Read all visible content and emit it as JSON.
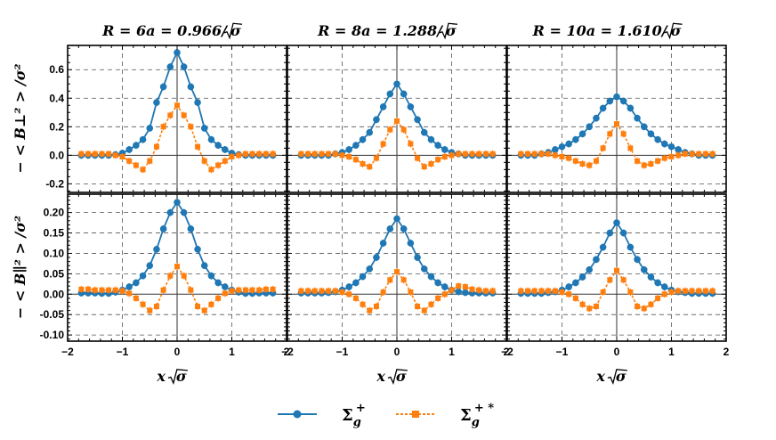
{
  "chart_data": {
    "type": "line",
    "columns": [
      {
        "title_lhs": "R = 6a = 0.966/",
        "title_rad": "σ"
      },
      {
        "title_lhs": "R = 8a = 1.288/",
        "title_rad": "σ"
      },
      {
        "title_lhs": "R = 10a = 1.610/",
        "title_rad": "σ"
      }
    ],
    "rows": [
      {
        "ylabel": "− < B⊥² > /σ²",
        "ylim": [
          -0.26,
          0.77
        ],
        "yticks": [
          -0.2,
          0.0,
          0.2,
          0.4,
          0.6
        ],
        "ytick_labels": [
          "-0.2",
          "0.0",
          "0.2",
          "0.4",
          "0.6"
        ]
      },
      {
        "ylabel": "− < B∥² > /σ²",
        "ylim": [
          -0.115,
          0.245
        ],
        "yticks": [
          -0.1,
          -0.05,
          0.0,
          0.05,
          0.1,
          0.15,
          0.2
        ],
        "ytick_labels": [
          "-0.10",
          "-0.05",
          "0.00",
          "0.05",
          "0.10",
          "0.15",
          "0.20"
        ]
      }
    ],
    "xlabel_lhs": "x",
    "xlabel_rad": "σ",
    "xlim": [
      -2,
      2
    ],
    "xticks": [
      -2,
      -1,
      0,
      1,
      2
    ],
    "xtick_labels": [
      "−2",
      "−1",
      "0",
      "1",
      "2"
    ],
    "x": [
      -1.75,
      -1.625,
      -1.5,
      -1.375,
      -1.25,
      -1.125,
      -1.0,
      -0.875,
      -0.75,
      -0.625,
      -0.5,
      -0.375,
      -0.25,
      -0.125,
      0.0,
      0.125,
      0.25,
      0.375,
      0.5,
      0.625,
      0.75,
      0.875,
      1.0,
      1.125,
      1.25,
      1.375,
      1.5,
      1.625,
      1.75
    ],
    "series_names": [
      "Σg+",
      "Σg+*"
    ],
    "series_colors": [
      "#1f77b4",
      "#ff7f0e"
    ],
    "panels": [
      {
        "row": 0,
        "col": 0,
        "series": [
          {
            "values": [
              0.0,
              0.0,
              0.0,
              0.0,
              0.0,
              0.005,
              0.015,
              0.04,
              0.07,
              0.11,
              0.19,
              0.37,
              0.48,
              0.62,
              0.72,
              0.62,
              0.48,
              0.37,
              0.19,
              0.11,
              0.07,
              0.04,
              0.015,
              0.005,
              0.0,
              0.0,
              0.0,
              0.0,
              0.0
            ]
          },
          {
            "values": [
              0.01,
              0.01,
              0.01,
              0.01,
              0.01,
              0.0,
              -0.01,
              -0.04,
              -0.07,
              -0.1,
              -0.04,
              0.06,
              0.2,
              0.28,
              0.35,
              0.28,
              0.2,
              0.06,
              -0.04,
              -0.1,
              -0.07,
              -0.04,
              -0.01,
              0.0,
              0.01,
              0.01,
              0.01,
              0.01,
              0.01
            ]
          }
        ]
      },
      {
        "row": 0,
        "col": 1,
        "series": [
          {
            "values": [
              0.0,
              0.0,
              0.0,
              0.0,
              0.0,
              0.01,
              0.02,
              0.04,
              0.07,
              0.11,
              0.16,
              0.25,
              0.34,
              0.43,
              0.5,
              0.43,
              0.34,
              0.25,
              0.16,
              0.11,
              0.07,
              0.04,
              0.02,
              0.01,
              0.0,
              0.0,
              0.0,
              0.0,
              0.0
            ]
          },
          {
            "values": [
              0.01,
              0.01,
              0.01,
              0.01,
              0.01,
              0.01,
              0.0,
              -0.01,
              -0.03,
              -0.06,
              -0.08,
              -0.02,
              0.08,
              0.18,
              0.24,
              0.18,
              0.08,
              -0.02,
              -0.08,
              -0.06,
              -0.03,
              -0.01,
              0.0,
              0.01,
              0.01,
              0.01,
              0.01,
              0.01,
              0.01
            ]
          }
        ]
      },
      {
        "row": 0,
        "col": 2,
        "series": [
          {
            "values": [
              0.0,
              0.0,
              0.0,
              0.01,
              0.02,
              0.04,
              0.06,
              0.08,
              0.11,
              0.15,
              0.2,
              0.26,
              0.33,
              0.38,
              0.41,
              0.38,
              0.33,
              0.26,
              0.2,
              0.15,
              0.11,
              0.08,
              0.06,
              0.04,
              0.02,
              0.01,
              0.0,
              0.0,
              0.0
            ]
          },
          {
            "values": [
              0.01,
              0.01,
              0.01,
              0.01,
              0.01,
              0.0,
              -0.01,
              -0.02,
              -0.04,
              -0.06,
              -0.07,
              -0.04,
              0.05,
              0.15,
              0.22,
              0.15,
              0.05,
              -0.04,
              -0.07,
              -0.06,
              -0.04,
              -0.02,
              -0.01,
              0.0,
              0.01,
              0.01,
              0.01,
              0.01,
              0.01
            ]
          }
        ]
      },
      {
        "row": 1,
        "col": 0,
        "series": [
          {
            "values": [
              0.003,
              0.003,
              0.003,
              0.002,
              0.002,
              0.005,
              0.01,
              0.018,
              0.028,
              0.045,
              0.07,
              0.11,
              0.16,
              0.2,
              0.225,
              0.2,
              0.16,
              0.11,
              0.07,
              0.045,
              0.028,
              0.018,
              0.01,
              0.005,
              0.002,
              0.002,
              0.003,
              0.003,
              0.003
            ]
          },
          {
            "values": [
              0.012,
              0.012,
              0.01,
              0.01,
              0.01,
              0.01,
              0.008,
              0.002,
              -0.01,
              -0.025,
              -0.04,
              -0.03,
              0.01,
              0.045,
              0.068,
              0.045,
              0.01,
              -0.03,
              -0.04,
              -0.025,
              -0.01,
              0.002,
              0.008,
              0.01,
              0.01,
              0.01,
              0.01,
              0.012,
              0.012
            ]
          }
        ]
      },
      {
        "row": 1,
        "col": 1,
        "series": [
          {
            "values": [
              0.003,
              0.003,
              0.003,
              0.003,
              0.004,
              0.006,
              0.01,
              0.018,
              0.028,
              0.043,
              0.062,
              0.09,
              0.125,
              0.16,
              0.185,
              0.16,
              0.125,
              0.09,
              0.062,
              0.043,
              0.028,
              0.018,
              0.01,
              0.006,
              0.004,
              0.003,
              0.003,
              0.003,
              0.003
            ]
          },
          {
            "values": [
              0.008,
              0.008,
              0.008,
              0.008,
              0.008,
              0.008,
              0.005,
              0.0,
              -0.01,
              -0.025,
              -0.04,
              -0.03,
              0.005,
              0.035,
              0.055,
              0.035,
              0.005,
              -0.03,
              -0.04,
              -0.025,
              -0.01,
              0.0,
              0.01,
              0.02,
              0.018,
              0.012,
              0.01,
              0.008,
              0.008
            ]
          }
        ]
      },
      {
        "row": 1,
        "col": 2,
        "series": [
          {
            "values": [
              0.002,
              0.002,
              0.002,
              0.002,
              0.004,
              0.006,
              0.01,
              0.018,
              0.028,
              0.042,
              0.06,
              0.085,
              0.115,
              0.15,
              0.175,
              0.15,
              0.115,
              0.085,
              0.06,
              0.042,
              0.028,
              0.018,
              0.01,
              0.006,
              0.004,
              0.002,
              0.002,
              0.002,
              0.002
            ]
          },
          {
            "values": [
              0.008,
              0.008,
              0.008,
              0.008,
              0.008,
              0.008,
              0.005,
              0.0,
              -0.01,
              -0.025,
              -0.035,
              -0.03,
              0.005,
              0.035,
              0.058,
              0.035,
              0.005,
              -0.03,
              -0.035,
              -0.025,
              -0.01,
              0.0,
              0.005,
              0.008,
              0.008,
              0.008,
              0.008,
              0.008,
              0.008
            ]
          }
        ]
      }
    ]
  },
  "legend": {
    "items": [
      {
        "label": "Σ",
        "sub": "g",
        "sup": "+"
      },
      {
        "label": "Σ",
        "sub": "g",
        "sup": "+ *"
      }
    ]
  }
}
